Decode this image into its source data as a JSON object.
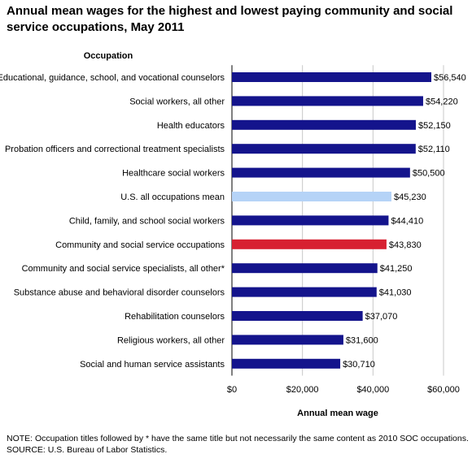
{
  "title": "Annual mean wages for the highest and lowest paying community and social service occupations, May 2011",
  "note": "NOTE:  Occupation titles followed by * have the same title but not necessarily the same content as 2010 SOC occupations.",
  "source": "SOURCE: U.S. Bureau of Labor Statistics.",
  "colors": {
    "default_bar": "#14148c",
    "us_mean_bar": "#b5d3f7",
    "community_bar": "#d72031",
    "gridline": "#c8c8c8",
    "axis": "#000000"
  },
  "chart_data": {
    "type": "bar",
    "orientation": "horizontal",
    "category_axis_title": "Occupation",
    "xlabel": "Annual mean wage",
    "xlim": [
      0,
      60000
    ],
    "xticks": [
      0,
      20000,
      40000,
      60000
    ],
    "xtick_labels": [
      "$0",
      "$20,000",
      "$40,000",
      "$60,000"
    ],
    "grid": true,
    "categories": [
      "Educational, guidance, school, and vocational counselors",
      "Social workers, all other",
      "Health educators",
      "Probation officers and correctional treatment specialists",
      "Healthcare social workers",
      "U.S. all occupations mean",
      "Child, family, and school social workers",
      "Community and social service occupations",
      "Community and social service specialists, all other*",
      "Substance abuse and behavioral disorder counselors",
      "Rehabilitation counselors",
      "Religious workers, all other",
      "Social and human service assistants"
    ],
    "values": [
      56540,
      54220,
      52150,
      52110,
      50500,
      45230,
      44410,
      43830,
      41250,
      41030,
      37070,
      31600,
      30710
    ],
    "value_labels": [
      "$56,540",
      "$54,220",
      "$52,150",
      "$52,110",
      "$50,500",
      "$45,230",
      "$44,410",
      "$43,830",
      "$41,250",
      "$41,030",
      "$37,070",
      "$31,600",
      "$30,710"
    ],
    "bar_color_keys": [
      "default_bar",
      "default_bar",
      "default_bar",
      "default_bar",
      "default_bar",
      "us_mean_bar",
      "default_bar",
      "community_bar",
      "default_bar",
      "default_bar",
      "default_bar",
      "default_bar",
      "default_bar"
    ]
  }
}
